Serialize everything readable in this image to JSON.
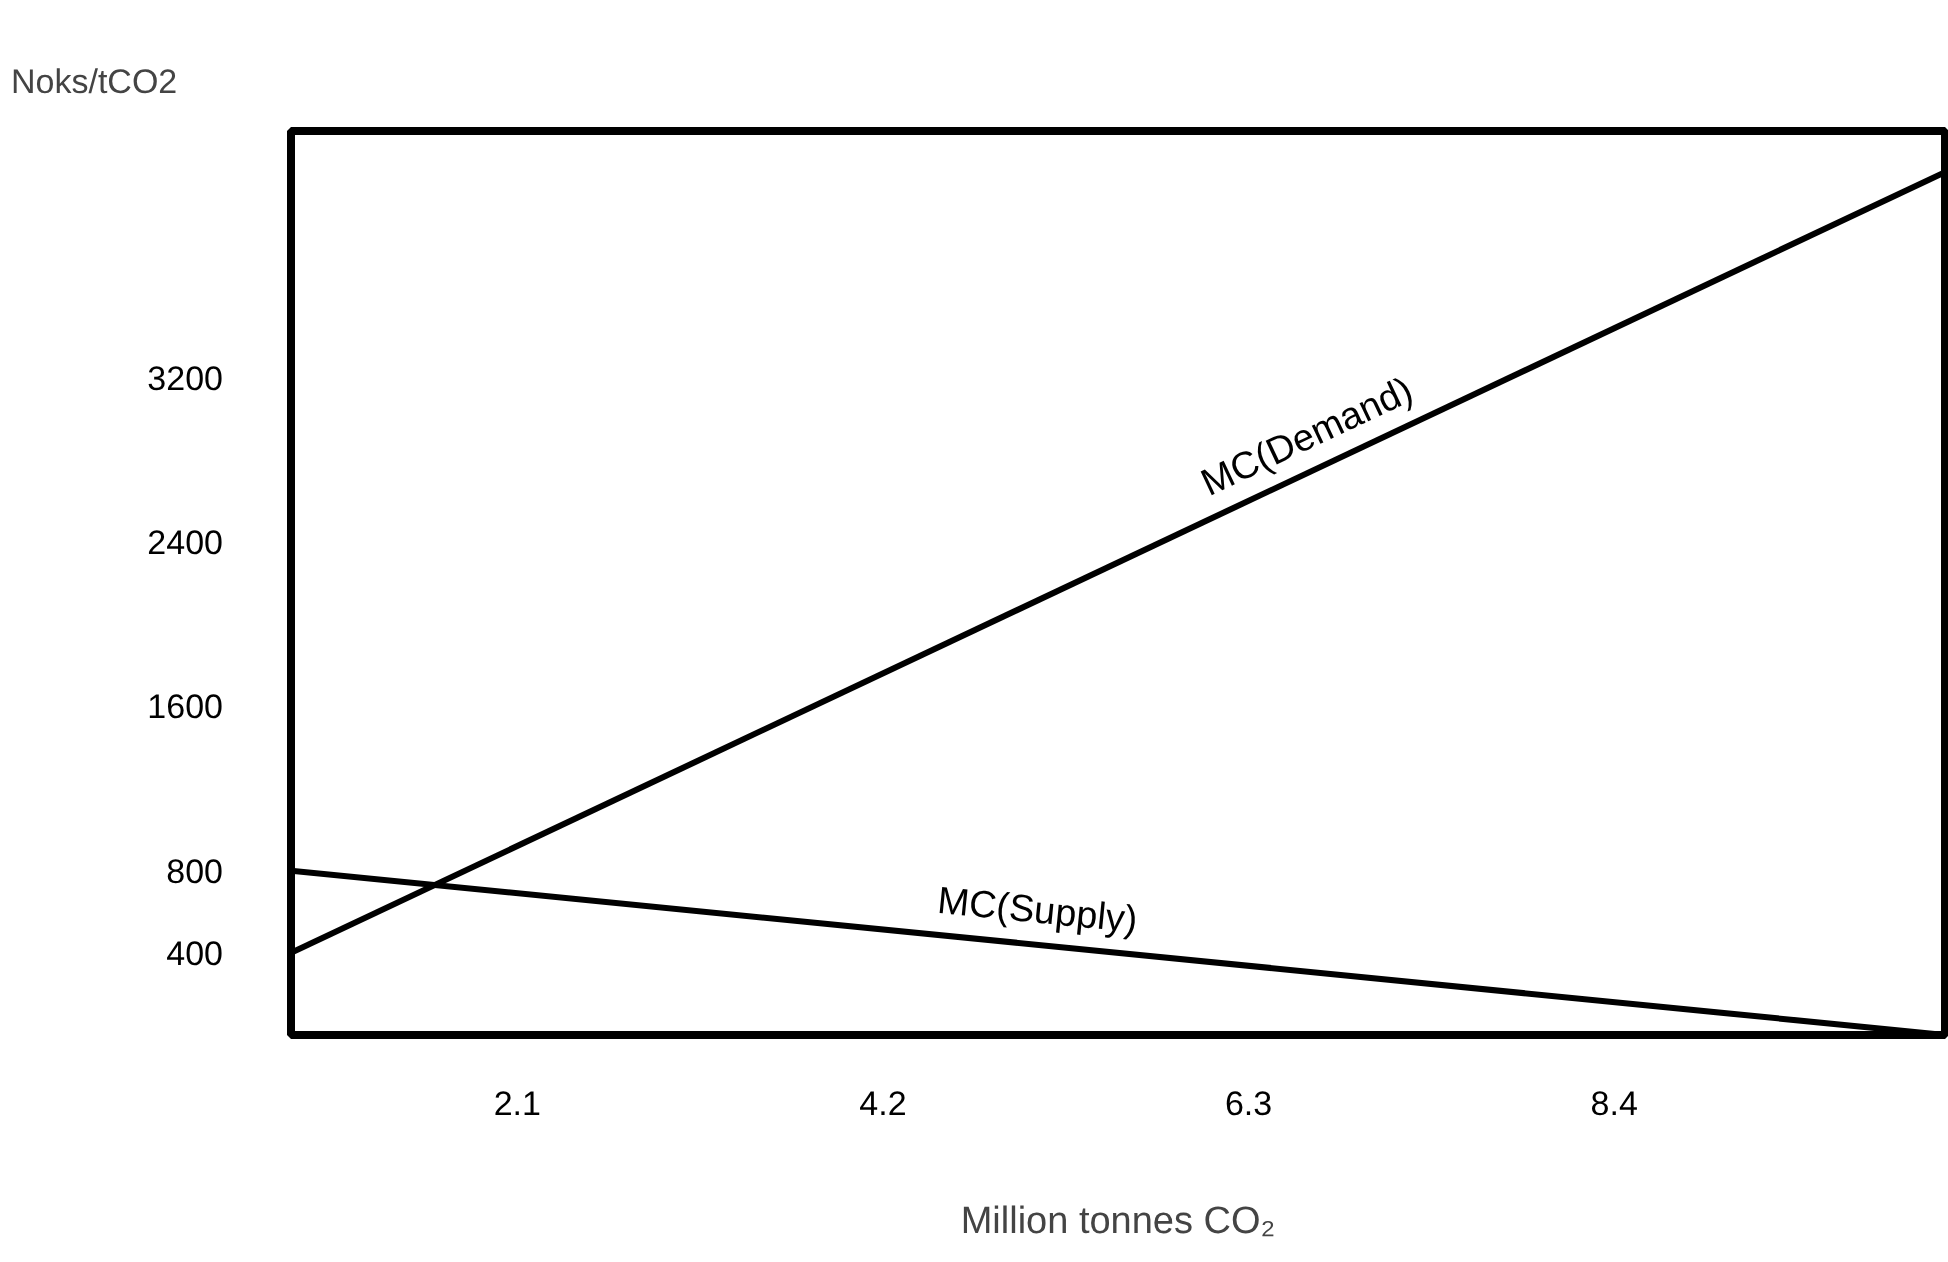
{
  "chart_data": {
    "type": "line",
    "xlabel": "Million tonnes CO₂",
    "ylabel": "Noks/tCO2",
    "xlim": [
      0.8,
      10.3
    ],
    "ylim": [
      0,
      4400
    ],
    "xticks": [
      2.1,
      4.2,
      6.3,
      8.4
    ],
    "yticks": [
      400,
      800,
      1600,
      2400,
      3200
    ],
    "grid": false,
    "marker": "none",
    "line_style": "solid",
    "x": [
      0.8,
      10.3
    ],
    "series": [
      {
        "name": "MC(Demand)",
        "color": "#000000",
        "values": [
          400,
          4200
        ]
      },
      {
        "name": "MC(Supply)",
        "color": "#000000",
        "values": [
          800,
          0
        ]
      }
    ]
  }
}
